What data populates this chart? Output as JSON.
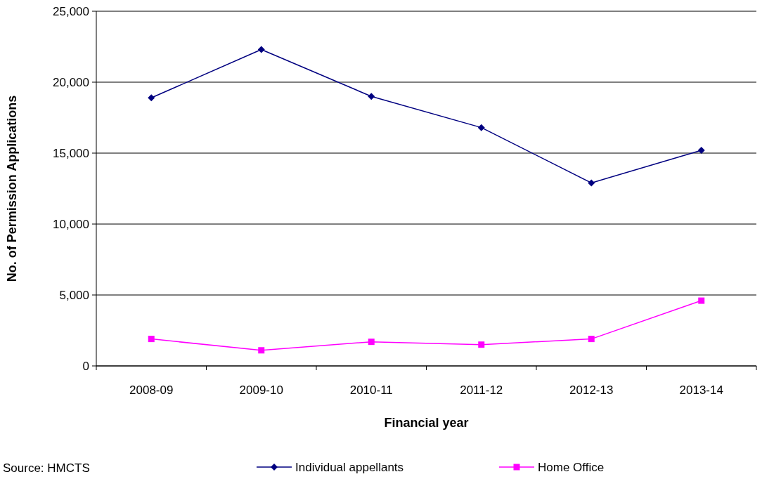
{
  "chart_data": {
    "type": "line",
    "xlabel": "Financial year",
    "ylabel": "No. of Permission Applications",
    "categories": [
      "2008-09",
      "2009-10",
      "2010-11",
      "2011-12",
      "2012-13",
      "2013-14"
    ],
    "series": [
      {
        "name": "Individual appellants",
        "color": "#000080",
        "marker": "diamond",
        "values": [
          18900,
          22300,
          19000,
          16800,
          12900,
          15200
        ]
      },
      {
        "name": "Home Office",
        "color": "#ff00ff",
        "marker": "square",
        "values": [
          1900,
          1100,
          1700,
          1500,
          1900,
          4600
        ]
      }
    ],
    "ylim": [
      0,
      25000
    ],
    "yticks": [
      {
        "value": 0,
        "label": "0"
      },
      {
        "value": 5000,
        "label": "5,000"
      },
      {
        "value": 10000,
        "label": "10,000"
      },
      {
        "value": 15000,
        "label": "15,000"
      },
      {
        "value": 20000,
        "label": "20,000"
      },
      {
        "value": 25000,
        "label": "25,000"
      }
    ],
    "grid": "y",
    "legend": "bottom",
    "annotations": [
      "Source:  HMCTS"
    ]
  }
}
